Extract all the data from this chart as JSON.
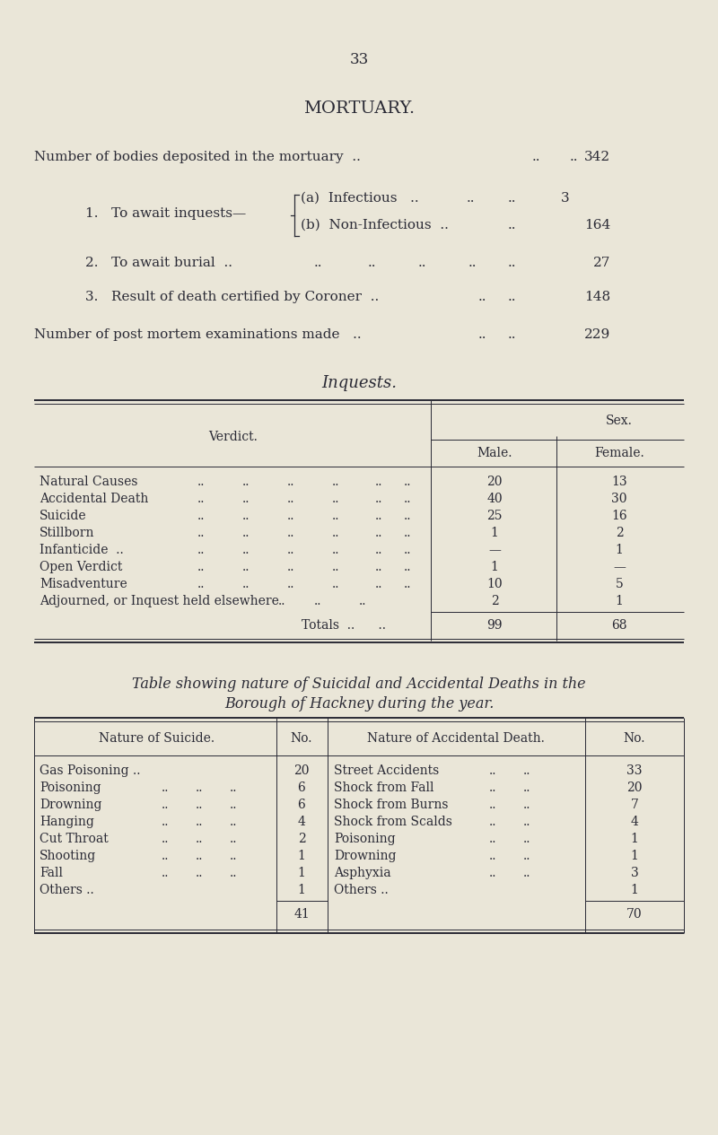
{
  "bg_color": "#eae6d8",
  "text_color": "#2a2a35",
  "page_number": "33",
  "title": "MORTUARY.",
  "table2_title1": "Table showing nature of Suicidal and Accidental Deaths in the",
  "table2_title2": "Borough of Hackney during the year.",
  "inquest_verdicts": [
    {
      "verdict": "Natural Causes",
      "male": "20",
      "female": "13"
    },
    {
      "verdict": "Accidental Death",
      "male": "40",
      "female": "30"
    },
    {
      "verdict": "Suicide",
      "male": "25",
      "female": "16"
    },
    {
      "verdict": "Stillborn",
      "male": "1",
      "female": "2"
    },
    {
      "verdict": "Infanticide  ..",
      "male": "—",
      "female": "1"
    },
    {
      "verdict": "Open Verdict",
      "male": "1",
      "female": "—"
    },
    {
      "verdict": "Misadventure",
      "male": "10",
      "female": "5"
    },
    {
      "verdict": "Adjourned, or Inquest held elsewhere",
      "male": "2",
      "female": "1"
    }
  ],
  "inquest_totals": {
    "male": "99",
    "female": "68"
  },
  "suicide_rows": [
    {
      "nature": "Gas Poisoning ..",
      "no": "20"
    },
    {
      "nature": "Poisoning",
      "no": "6"
    },
    {
      "nature": "Drowning",
      "no": "6"
    },
    {
      "nature": "Hanging",
      "no": "4"
    },
    {
      "nature": "Cut Throat",
      "no": "2"
    },
    {
      "nature": "Shooting",
      "no": "1"
    },
    {
      "nature": "Fall",
      "no": "1"
    },
    {
      "nature": "Others ..",
      "no": "1"
    }
  ],
  "suicide_total": "41",
  "accident_rows": [
    {
      "nature": "Street Accidents",
      "no": "33"
    },
    {
      "nature": "Shock from Fall",
      "no": "20"
    },
    {
      "nature": "Shock from Burns",
      "no": "7"
    },
    {
      "nature": "Shock from Scalds",
      "no": "4"
    },
    {
      "nature": "Poisoning",
      "no": "1"
    },
    {
      "nature": "Drowning",
      "no": "1"
    },
    {
      "nature": "Asphyxia",
      "no": "3"
    },
    {
      "nature": "Others ..",
      "no": "1"
    }
  ],
  "accident_total": "70",
  "lw_thick": 1.4,
  "lw_thin": 0.7
}
